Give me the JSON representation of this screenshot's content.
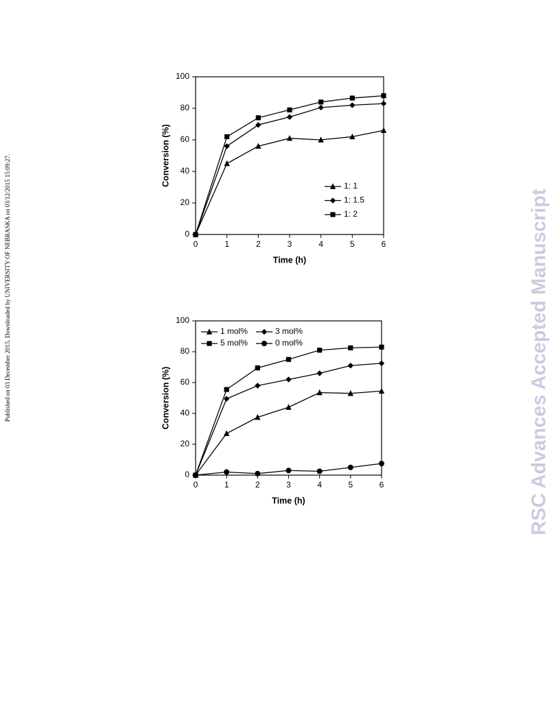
{
  "side_note": "Published on 03 December 2015. Downloaded by UNIVERSITY OF NEBRASKA on 03/12/2015 15:09:27.",
  "watermark": "RSC Advances Accepted Manuscript",
  "chart_data": [
    {
      "type": "line",
      "xlabel": "Time (h)",
      "ylabel": "Conversion (%)",
      "x": [
        0,
        1,
        2,
        3,
        4,
        5,
        6
      ],
      "xlim": [
        0,
        6
      ],
      "xticks": [
        0,
        1,
        2,
        3,
        4,
        5,
        6
      ],
      "ylim": [
        0,
        100
      ],
      "yticks": [
        0,
        20,
        40,
        60,
        80,
        100
      ],
      "legend": "lower right",
      "series": [
        {
          "name": "1: 1",
          "color": "#000000",
          "marker": "triangle",
          "values": [
            0,
            45,
            56,
            61,
            60,
            62,
            66
          ]
        },
        {
          "name": "1: 1.5",
          "color": "#000000",
          "marker": "diamond",
          "values": [
            0,
            56,
            69.5,
            74.5,
            80.5,
            82,
            83
          ]
        },
        {
          "name": "1: 2",
          "color": "#000000",
          "marker": "square",
          "values": [
            0,
            62,
            74,
            79,
            84,
            86.5,
            88
          ]
        }
      ]
    },
    {
      "type": "line",
      "xlabel": "Time (h)",
      "ylabel": "Conversion (%)",
      "x": [
        0,
        1,
        2,
        3,
        4,
        5,
        6
      ],
      "xlim": [
        0,
        6
      ],
      "xticks": [
        0,
        1,
        2,
        3,
        4,
        5,
        6
      ],
      "ylim": [
        0,
        100
      ],
      "yticks": [
        0,
        20,
        40,
        60,
        80,
        100
      ],
      "legend": "upper left",
      "series": [
        {
          "name": "1 mol%",
          "color": "#000000",
          "marker": "triangle",
          "values": [
            0,
            27,
            37.5,
            44,
            53.5,
            53,
            54.5
          ]
        },
        {
          "name": "3 mol%",
          "color": "#000000",
          "marker": "diamond",
          "values": [
            0,
            49.5,
            58,
            62,
            66,
            71,
            72.5
          ]
        },
        {
          "name": "5 mol%",
          "color": "#000000",
          "marker": "square",
          "values": [
            0,
            55.5,
            69.5,
            75,
            81,
            82.5,
            83
          ]
        },
        {
          "name": "0 mol%",
          "color": "#000000",
          "marker": "circle",
          "values": [
            0,
            2,
            1,
            3,
            2.5,
            5,
            7.5
          ]
        }
      ]
    }
  ]
}
